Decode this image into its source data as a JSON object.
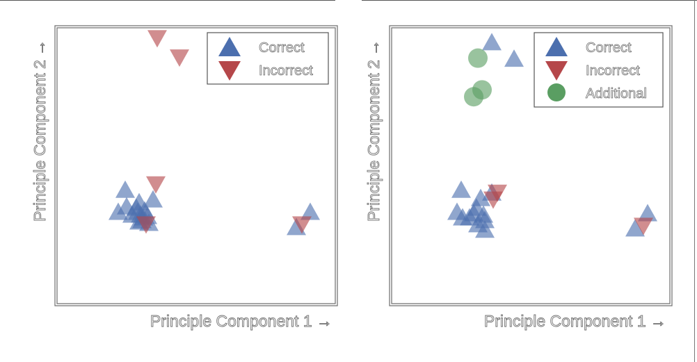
{
  "colors": {
    "correct": "#4c6fae",
    "incorrect": "#b5474a",
    "additional": "#5a9e62",
    "frame": "#666666"
  },
  "chart_data": [
    {
      "type": "scatter",
      "xlabel": "Principle Component 1 →",
      "ylabel": "Principle Component 2 →",
      "grid": false,
      "legend_placement": "top-right",
      "series": [
        {
          "name": "Correct",
          "marker": "triangle-up",
          "points": [
            [
              2.45,
              4.15
            ],
            [
              2.5,
              3.55
            ],
            [
              2.9,
              3.35
            ],
            [
              3.45,
              3.8
            ],
            [
              2.85,
              3.5
            ],
            [
              2.95,
              3.7
            ],
            [
              3.0,
              3.25
            ],
            [
              3.1,
              3.15
            ],
            [
              2.7,
              3.25
            ],
            [
              3.15,
              3.4
            ],
            [
              3.25,
              3.2
            ],
            [
              3.05,
              3.05
            ],
            [
              3.3,
              2.95
            ],
            [
              2.95,
              3.0
            ],
            [
              2.2,
              3.35
            ],
            [
              8.6,
              2.8
            ],
            [
              9.1,
              3.35
            ]
          ]
        },
        {
          "name": "Incorrect",
          "marker": "triangle-down",
          "points": [
            [
              3.6,
              9.6
            ],
            [
              4.4,
              8.9
            ],
            [
              3.55,
              4.3
            ],
            [
              3.2,
              2.85
            ],
            [
              8.8,
              2.85
            ]
          ]
        }
      ]
    },
    {
      "type": "scatter",
      "xlabel": "Principle Component 1 →",
      "ylabel": "Principle Component 2 →",
      "grid": false,
      "legend_placement": "top-right",
      "series": [
        {
          "name": "Correct",
          "marker": "triangle-up",
          "points": [
            [
              3.6,
              9.5
            ],
            [
              4.4,
              8.9
            ],
            [
              2.5,
              4.15
            ],
            [
              3.2,
              3.85
            ],
            [
              3.05,
              3.5
            ],
            [
              2.95,
              3.3
            ],
            [
              3.3,
              3.25
            ],
            [
              3.35,
              3.05
            ],
            [
              2.8,
              3.15
            ],
            [
              2.55,
              3.15
            ],
            [
              3.1,
              2.9
            ],
            [
              3.35,
              2.7
            ],
            [
              2.35,
              3.35
            ],
            [
              3.6,
              4.05
            ],
            [
              8.75,
              2.75
            ],
            [
              9.2,
              3.3
            ]
          ]
        },
        {
          "name": "Incorrect",
          "marker": "triangle-down",
          "points": [
            [
              3.8,
              4.0
            ],
            [
              3.65,
              3.75
            ],
            [
              9.05,
              2.8
            ]
          ]
        },
        {
          "name": "Additional",
          "marker": "circle",
          "points": [
            [
              3.1,
              8.9
            ],
            [
              3.25,
              7.75
            ],
            [
              2.95,
              7.5
            ]
          ]
        }
      ]
    }
  ]
}
